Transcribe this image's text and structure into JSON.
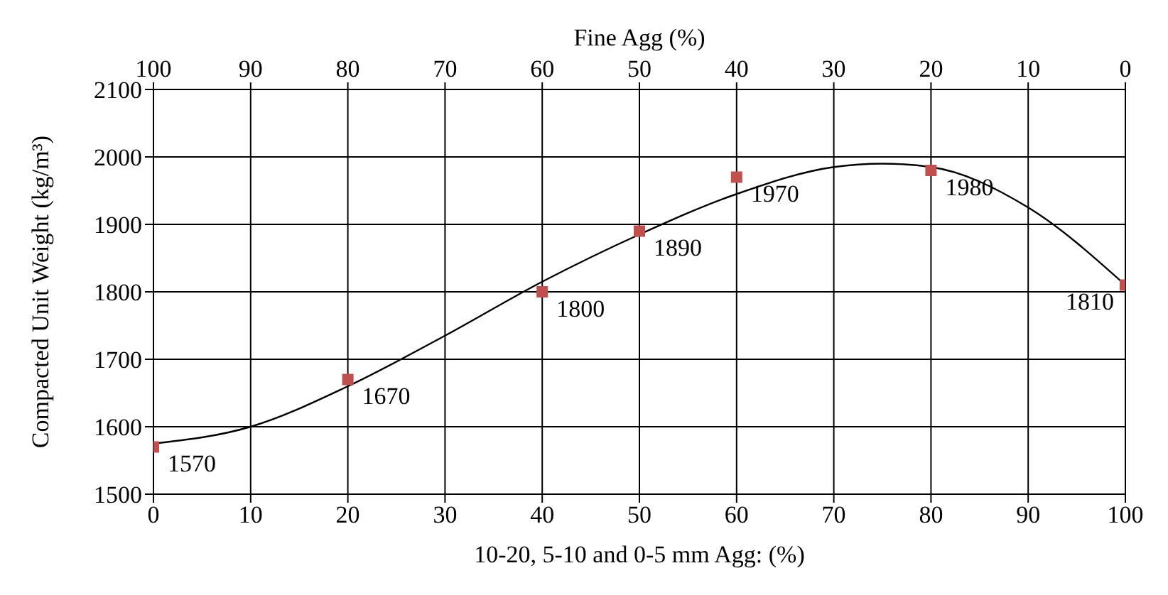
{
  "chart_data": {
    "type": "scatter",
    "xlabel": "10-20, 5-10 and 0-5 mm Agg: (%)",
    "ylabel": "Compacted Unit Weight (kg/m³)",
    "x2label": "Fine Agg (%)",
    "x": [
      0,
      20,
      40,
      50,
      60,
      80,
      100
    ],
    "series": [
      {
        "color": "#c0504d",
        "values": [
          1570,
          1670,
          1800,
          1890,
          1970,
          1980,
          1810
        ],
        "value_labels": [
          "1570",
          "1670",
          "1800",
          "1890",
          "1970",
          "1980",
          "1810"
        ]
      },
      {
        "type": "line",
        "marker": "none",
        "color": "#000000",
        "x": [
          0,
          10,
          20,
          30,
          40,
          50,
          60,
          70,
          75,
          80,
          90,
          100
        ],
        "values": [
          1575,
          1600,
          1660,
          1735,
          1815,
          1885,
          1945,
          1985,
          1990,
          1985,
          1925,
          1810
        ]
      }
    ],
    "marker": "square",
    "grid": true,
    "xlim": [
      0,
      100
    ],
    "xticks": [
      0,
      10,
      20,
      30,
      40,
      50,
      60,
      70,
      80,
      90,
      100
    ],
    "x2lim": [
      100,
      0
    ],
    "x2ticks": [
      100,
      90,
      80,
      70,
      60,
      50,
      40,
      30,
      20,
      10,
      0
    ],
    "ylim": [
      1500,
      2100
    ],
    "yticks": [
      1500,
      1600,
      1700,
      1800,
      1900,
      2000,
      2100
    ]
  }
}
